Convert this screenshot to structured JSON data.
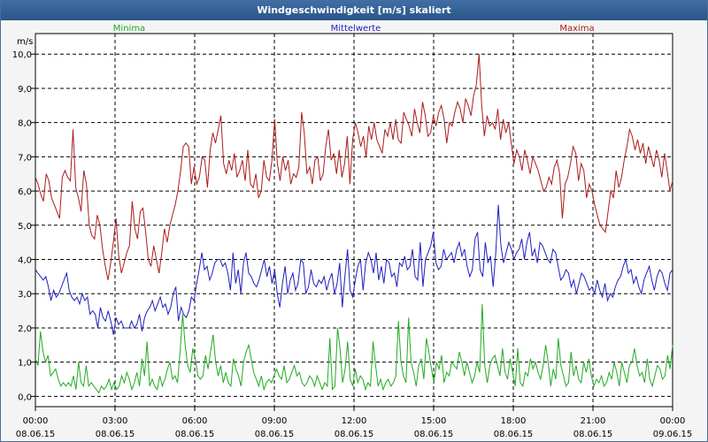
{
  "window": {
    "title": "Windgeschwindigkeit [m/s] skaliert"
  },
  "chart_data": {
    "type": "line",
    "title": "Windgeschwindigkeit [m/s] skaliert",
    "ylabel": "m/s",
    "ylim": [
      -0.3,
      10.6
    ],
    "xlim": [
      0,
      24
    ],
    "grid": true,
    "legend_position": "top",
    "yticks": [
      "0,0",
      "1,0",
      "2,0",
      "3,0",
      "4,0",
      "5,0",
      "6,0",
      "7,0",
      "8,0",
      "9,0",
      "10,0"
    ],
    "xticks": [
      {
        "time": "00:00",
        "date": "08.06.15"
      },
      {
        "time": "03:00",
        "date": "08.06.15"
      },
      {
        "time": "06:00",
        "date": "08.06.15"
      },
      {
        "time": "09:00",
        "date": "08.06.15"
      },
      {
        "time": "12:00",
        "date": "08.06.15"
      },
      {
        "time": "15:00",
        "date": "08.06.15"
      },
      {
        "time": "18:00",
        "date": "08.06.15"
      },
      {
        "time": "21:00",
        "date": "08.06.15"
      },
      {
        "time": "00:00",
        "date": "09.06.15"
      }
    ],
    "series": [
      {
        "name": "Minima",
        "color": "#22aa22",
        "values": [
          1.1,
          0.9,
          1.9,
          1.3,
          1.0,
          1.2,
          0.6,
          0.7,
          0.8,
          0.5,
          0.3,
          0.4,
          0.3,
          0.4,
          0.3,
          0.6,
          0.2,
          1.0,
          0.4,
          0.3,
          0.9,
          0.3,
          0.4,
          0.3,
          0.2,
          0.1,
          0.3,
          0.2,
          0.3,
          0.5,
          0.2,
          0.4,
          0.2,
          0.3,
          0.6,
          0.4,
          0.7,
          0.5,
          0.2,
          0.4,
          0.7,
          0.3,
          1.1,
          0.6,
          1.6,
          0.3,
          0.5,
          0.3,
          0.2,
          0.6,
          0.3,
          0.5,
          0.8,
          1.0,
          0.5,
          0.6,
          0.4,
          1.3,
          2.4,
          1.5,
          0.9,
          0.7,
          1.4,
          1.1,
          0.6,
          0.5,
          0.6,
          1.2,
          0.8,
          1.3,
          1.8,
          1.0,
          0.6,
          0.9,
          0.4,
          0.7,
          0.4,
          0.3,
          1.1,
          0.8,
          0.6,
          0.3,
          1.0,
          1.3,
          1.5,
          1.1,
          0.7,
          0.5,
          0.3,
          0.6,
          0.2,
          0.4,
          0.5,
          0.4,
          0.6,
          0.8,
          0.6,
          0.5,
          0.9,
          0.4,
          0.5,
          0.7,
          0.9,
          0.6,
          0.7,
          0.4,
          0.3,
          0.4,
          0.6,
          0.5,
          0.3,
          0.6,
          0.4,
          0.2,
          0.4,
          0.3,
          1.7,
          0.2,
          0.3,
          2.0,
          1.4,
          0.4,
          0.8,
          1.6,
          0.5,
          0.3,
          0.8,
          0.4,
          0.6,
          0.5,
          0.2,
          0.4,
          0.3,
          1.6,
          0.9,
          0.3,
          0.5,
          0.2,
          0.4,
          0.5,
          0.3,
          0.4,
          0.6,
          2.2,
          1.0,
          0.6,
          0.4,
          2.3,
          1.0,
          0.7,
          0.3,
          0.9,
          1.1,
          0.5,
          1.7,
          1.3,
          0.8,
          0.4,
          1.0,
          0.8,
          1.2,
          0.4,
          0.7,
          0.6,
          1.0,
          0.9,
          0.8,
          1.3,
          1.0,
          0.6,
          1.0,
          0.7,
          0.4,
          0.6,
          1.0,
          0.7,
          2.7,
          0.9,
          0.4,
          0.9,
          1.1,
          1.2,
          0.9,
          0.6,
          1.4,
          0.7,
          0.5,
          1.1,
          0.7,
          0.3,
          1.4,
          0.4,
          0.3,
          0.7,
          0.6,
          1.1,
          0.8,
          1.0,
          0.7,
          0.5,
          0.9,
          1.5,
          1.0,
          0.3,
          0.8,
          0.5,
          1.7,
          0.9,
          0.6,
          0.3,
          0.4,
          1.3,
          0.6,
          0.9,
          0.5,
          0.4,
          1.0,
          0.7,
          1.1,
          0.6,
          0.3,
          0.5,
          0.4,
          0.6,
          0.3,
          0.4,
          0.7,
          0.5,
          1.0,
          0.7,
          0.3,
          1.0,
          0.7,
          0.4,
          0.9,
          1.0,
          1.4,
          0.9,
          0.6,
          0.7,
          0.4,
          1.1,
          0.5,
          0.3,
          0.6,
          0.9,
          0.8,
          0.5,
          0.6,
          1.2,
          0.8,
          1.5
        ]
      },
      {
        "name": "Mittelwerte",
        "color": "#1f1fbf",
        "values": [
          3.7,
          3.6,
          3.5,
          3.4,
          3.5,
          3.2,
          2.8,
          3.1,
          2.9,
          3.0,
          3.2,
          3.4,
          3.6,
          3.1,
          2.9,
          2.8,
          2.9,
          2.7,
          3.0,
          2.8,
          2.9,
          2.4,
          2.5,
          2.4,
          2.0,
          2.6,
          2.3,
          2.2,
          2.5,
          2.2,
          1.8,
          2.3,
          2.1,
          2.2,
          2.0,
          2.0,
          2.0,
          2.2,
          2.0,
          2.1,
          2.4,
          1.9,
          2.3,
          2.5,
          2.6,
          2.8,
          2.5,
          2.7,
          2.9,
          2.6,
          2.7,
          2.4,
          2.6,
          3.0,
          3.2,
          2.2,
          2.6,
          2.4,
          2.3,
          2.5,
          2.9,
          2.8,
          3.3,
          3.7,
          4.2,
          3.7,
          3.8,
          3.4,
          3.6,
          3.9,
          4.0,
          4.0,
          3.8,
          3.9,
          3.6,
          3.1,
          4.2,
          3.3,
          3.7,
          3.0,
          3.9,
          4.2,
          3.6,
          3.5,
          3.3,
          3.2,
          3.4,
          3.7,
          4.0,
          3.5,
          3.8,
          3.3,
          3.7,
          3.0,
          2.6,
          3.3,
          3.8,
          3.0,
          3.4,
          3.6,
          3.1,
          3.3,
          4.0,
          3.9,
          3.0,
          3.2,
          3.7,
          3.3,
          3.2,
          3.4,
          3.3,
          3.5,
          3.1,
          3.4,
          3.6,
          3.0,
          3.3,
          3.9,
          2.6,
          3.5,
          4.3,
          3.1,
          2.9,
          3.4,
          3.8,
          4.0,
          3.1,
          3.9,
          4.2,
          4.0,
          3.6,
          4.2,
          3.4,
          3.8,
          3.3,
          4.0,
          3.9,
          3.5,
          3.6,
          3.2,
          3.9,
          3.8,
          4.1,
          3.7,
          3.8,
          4.3,
          3.5,
          3.4,
          4.5,
          3.2,
          4.0,
          4.2,
          4.4,
          4.8,
          3.9,
          3.7,
          3.8,
          4.3,
          4.0,
          4.1,
          4.2,
          3.9,
          4.3,
          4.5,
          4.1,
          4.3,
          3.8,
          3.5,
          3.7,
          4.6,
          4.8,
          3.7,
          3.5,
          4.5,
          3.9,
          4.1,
          3.2,
          4.2,
          5.6,
          4.4,
          3.9,
          4.2,
          4.5,
          4.3,
          4.0,
          4.2,
          4.3,
          4.6,
          4.0,
          4.5,
          4.8,
          4.1,
          4.3,
          3.9,
          4.5,
          4.4,
          4.2,
          4.0,
          3.9,
          4.3,
          4.2,
          3.8,
          3.4,
          3.5,
          3.7,
          3.6,
          3.2,
          3.4,
          3.0,
          3.3,
          3.6,
          3.5,
          3.3,
          3.1,
          3.2,
          3.0,
          3.4,
          3.1,
          2.9,
          3.3,
          2.8,
          3.0,
          2.9,
          3.2,
          3.4,
          3.5,
          3.8,
          4.0,
          3.6,
          3.7,
          3.3,
          3.5,
          3.2,
          3.0,
          3.4,
          3.6,
          3.8,
          3.4,
          3.1,
          3.5,
          3.7,
          3.6,
          3.3,
          3.1,
          3.6,
          3.7
        ]
      },
      {
        "name": "Maxima",
        "color": "#aa1c1c",
        "values": [
          6.4,
          6.2,
          5.9,
          5.7,
          6.5,
          6.3,
          5.8,
          5.6,
          5.4,
          5.2,
          6.4,
          6.6,
          6.4,
          6.3,
          7.8,
          6.1,
          5.8,
          5.4,
          6.6,
          6.2,
          5.0,
          4.7,
          4.6,
          5.3,
          5.0,
          4.3,
          3.8,
          3.4,
          3.9,
          4.5,
          5.2,
          4.1,
          3.6,
          3.9,
          4.2,
          4.4,
          5.7,
          4.9,
          4.6,
          5.4,
          5.5,
          4.8,
          4.0,
          3.8,
          4.4,
          4.0,
          3.6,
          4.2,
          4.9,
          4.5,
          5.0,
          5.3,
          5.6,
          6.0,
          6.6,
          7.3,
          7.4,
          7.3,
          6.2,
          6.7,
          6.2,
          6.4,
          7.0,
          6.9,
          6.1,
          7.2,
          7.7,
          7.4,
          7.8,
          8.2,
          6.8,
          6.5,
          6.9,
          6.6,
          7.1,
          6.4,
          6.6,
          6.9,
          6.3,
          7.2,
          6.2,
          6.1,
          6.5,
          5.8,
          6.0,
          6.9,
          6.4,
          6.3,
          6.9,
          8.1,
          6.8,
          6.3,
          7.0,
          6.6,
          6.9,
          6.2,
          6.5,
          6.4,
          6.7,
          8.3,
          7.7,
          6.5,
          6.7,
          6.2,
          6.9,
          7.0,
          6.3,
          6.5,
          7.3,
          7.8,
          6.9,
          7.1,
          6.5,
          7.2,
          6.4,
          6.8,
          7.6,
          6.2,
          7.5,
          8.0,
          7.7,
          7.3,
          7.6,
          7.0,
          7.9,
          7.5,
          8.0,
          7.5,
          7.3,
          7.1,
          7.8,
          7.6,
          8.0,
          7.5,
          8.1,
          7.5,
          7.4,
          8.3,
          8.1,
          7.9,
          7.6,
          8.4,
          8.0,
          7.7,
          8.6,
          8.2,
          7.6,
          7.7,
          8.2,
          7.9,
          8.3,
          8.5,
          8.1,
          7.4,
          8.0,
          7.9,
          8.3,
          8.6,
          8.4,
          8.0,
          8.7,
          8.5,
          8.2,
          8.8,
          9.1,
          10.0,
          8.5,
          7.6,
          8.2,
          7.9,
          8.0,
          7.8,
          8.4,
          7.5,
          8.1,
          7.7,
          8.0,
          7.4,
          6.8,
          7.2,
          7.0,
          6.6,
          7.2,
          6.9,
          6.5,
          7.0,
          6.8,
          6.6,
          6.3,
          6.0,
          6.1,
          6.4,
          6.2,
          6.7,
          6.9,
          6.5,
          5.2,
          6.2,
          6.4,
          6.8,
          7.3,
          7.1,
          6.3,
          6.8,
          6.6,
          5.8,
          6.2,
          6.0,
          5.6,
          5.3,
          5.0,
          4.9,
          4.8,
          5.4,
          6.0,
          5.8,
          6.6,
          6.1,
          6.4,
          6.9,
          7.3,
          7.8,
          7.6,
          7.2,
          7.5,
          7.1,
          7.4,
          6.8,
          7.3,
          7.0,
          6.7,
          7.2,
          6.9,
          6.4,
          7.1,
          6.6,
          6.0,
          6.3
        ]
      }
    ]
  }
}
